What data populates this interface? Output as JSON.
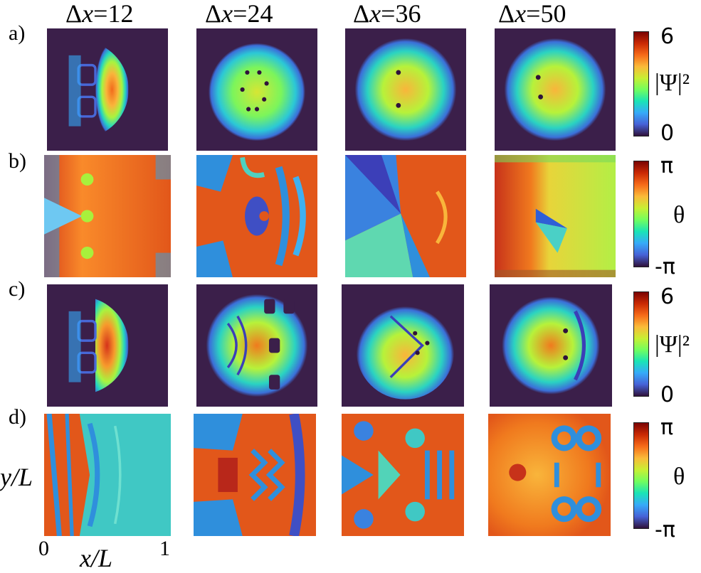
{
  "columns": [
    {
      "title_prefix": "Δ",
      "title_var": "x",
      "title_value": "=12"
    },
    {
      "title_prefix": "Δ",
      "title_var": "x",
      "title_value": "=24"
    },
    {
      "title_prefix": "Δ",
      "title_var": "x",
      "title_value": "=36"
    },
    {
      "title_prefix": "Δ",
      "title_var": "x",
      "title_value": "=50"
    }
  ],
  "rows": [
    {
      "label": "a)",
      "quantity": "amplitude"
    },
    {
      "label": "b)",
      "quantity": "phase"
    },
    {
      "label": "c)",
      "quantity": "amplitude"
    },
    {
      "label": "d)",
      "quantity": "phase"
    }
  ],
  "colorbars": {
    "amplitude": {
      "max": "6",
      "min": "0",
      "symbol": "|Ψ|²"
    },
    "phase": {
      "max": "π",
      "min": "-π",
      "symbol": "θ"
    }
  },
  "axes": {
    "x_label": "x/L",
    "y_label": "y/L",
    "x_min": "0",
    "x_max": "1"
  },
  "colors": {
    "background_dark": "#3b1f4a",
    "low": "#30123b",
    "mid": "#72fe5e",
    "high": "#7a0403"
  }
}
